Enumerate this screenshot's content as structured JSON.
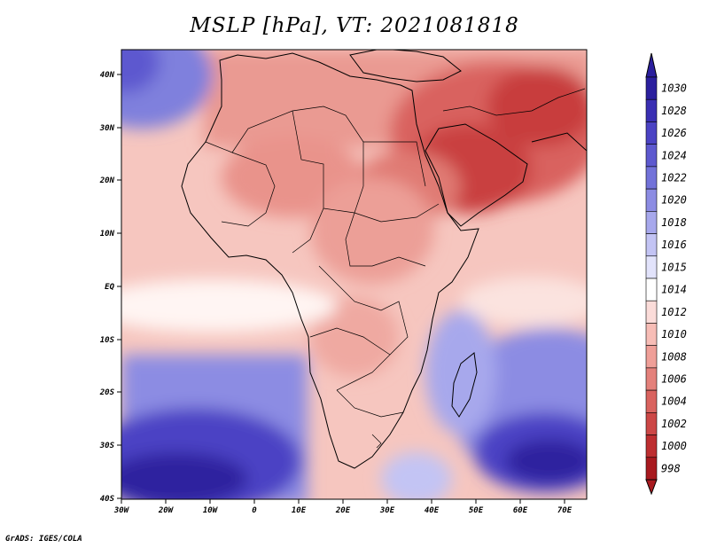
{
  "title": "MSLP [hPa], VT: 2021081818",
  "credit": "GrADS: IGES/COLA",
  "map": {
    "lon_labels": [
      "30W",
      "20W",
      "10W",
      "0",
      "10E",
      "20E",
      "30E",
      "40E",
      "50E",
      "60E",
      "70E"
    ],
    "lat_labels": [
      "40N",
      "30N",
      "20N",
      "10N",
      "EQ",
      "10S",
      "20S",
      "30S",
      "40S"
    ]
  },
  "colorbar": {
    "labels": [
      "1030",
      "1028",
      "1026",
      "1024",
      "1022",
      "1020",
      "1018",
      "1016",
      "1015",
      "1014",
      "1012",
      "1010",
      "1008",
      "1006",
      "1004",
      "1002",
      "1000",
      "998"
    ],
    "colors": [
      "#2b1f9e",
      "#3a2fb3",
      "#4b43c4",
      "#5d59cf",
      "#7272d9",
      "#8c8ce3",
      "#a7a8ec",
      "#c3c4f4",
      "#e2e3fb",
      "#ffffff",
      "#fbdcd9",
      "#f7bdb6",
      "#ef9f98",
      "#e4817b",
      "#d9635f",
      "#cc4746",
      "#bd2e30",
      "#a81a1f"
    ]
  },
  "chart_data": {
    "type": "heatmap",
    "title": "MSLP [hPa], VT: 2021081818",
    "variable": "MSLP",
    "units": "hPa",
    "valid_time": "2021081818",
    "lon_range": [
      "30W",
      "75E"
    ],
    "lat_range": [
      "40S",
      "45N"
    ],
    "colorbar_levels": [
      998,
      1000,
      1002,
      1004,
      1006,
      1008,
      1010,
      1012,
      1014,
      1015,
      1016,
      1018,
      1020,
      1022,
      1024,
      1026,
      1028,
      1030
    ]
  }
}
